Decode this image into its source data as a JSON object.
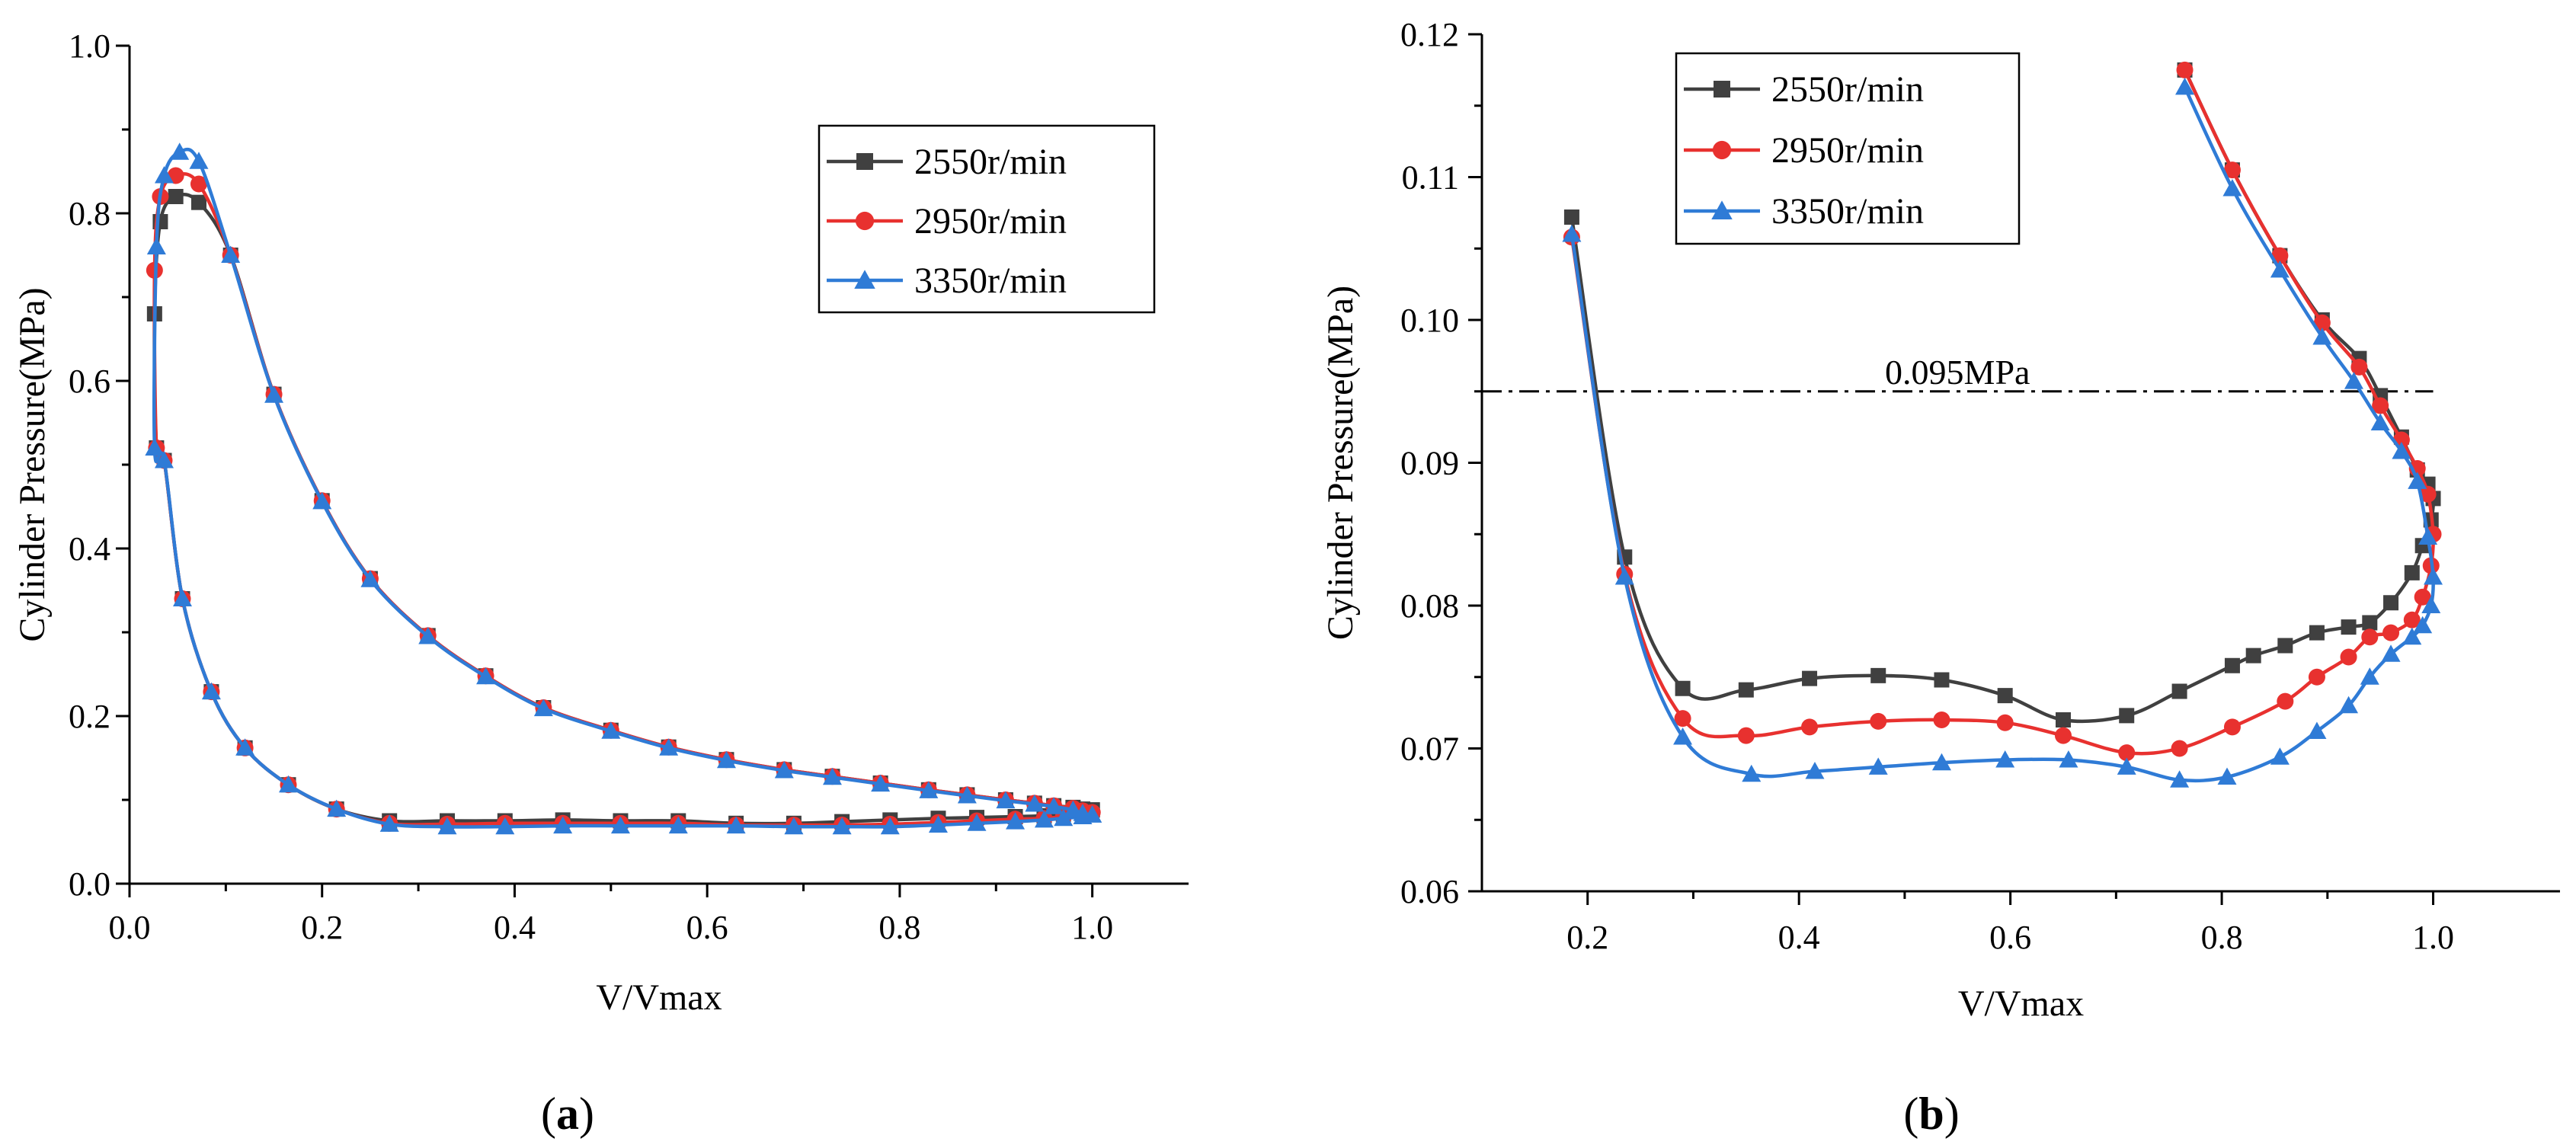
{
  "chart_data": [
    {
      "panel": "a",
      "type": "line",
      "xlabel": "V/Vmax",
      "ylabel": "Cylinder Pressure(MPa)",
      "xlim": [
        0.0,
        1.1
      ],
      "ylim": [
        0.0,
        1.0
      ],
      "xticks": [
        "0.0",
        "0.2",
        "0.4",
        "0.6",
        "0.8",
        "1.0"
      ],
      "yticks": [
        "0.0",
        "0.2",
        "0.4",
        "0.6",
        "0.8",
        "1.0"
      ],
      "legend_position": "top-right",
      "series": [
        {
          "name": "2550r/min",
          "color": "#404040",
          "marker": "square",
          "x": [
            1.0,
            0.99,
            0.98,
            0.96,
            0.94,
            0.91,
            0.87,
            0.83,
            0.78,
            0.73,
            0.68,
            0.62,
            0.56,
            0.5,
            0.43,
            0.37,
            0.31,
            0.25,
            0.2,
            0.15,
            0.105,
            0.072,
            0.048,
            0.032,
            0.026,
            0.028,
            0.036,
            0.055,
            0.085,
            0.12,
            0.165,
            0.215,
            0.27,
            0.33,
            0.39,
            0.45,
            0.51,
            0.57,
            0.63,
            0.69,
            0.74,
            0.79,
            0.84,
            0.88,
            0.92,
            0.95,
            0.97,
            0.99,
            1.0
          ],
          "y": [
            0.088,
            0.089,
            0.091,
            0.093,
            0.096,
            0.1,
            0.106,
            0.112,
            0.12,
            0.128,
            0.136,
            0.148,
            0.163,
            0.183,
            0.21,
            0.248,
            0.296,
            0.364,
            0.457,
            0.584,
            0.75,
            0.813,
            0.82,
            0.79,
            0.68,
            0.52,
            0.505,
            0.34,
            0.229,
            0.162,
            0.118,
            0.089,
            0.075,
            0.075,
            0.075,
            0.076,
            0.075,
            0.075,
            0.072,
            0.072,
            0.074,
            0.076,
            0.078,
            0.079,
            0.08,
            0.081,
            0.083,
            0.085,
            0.088
          ]
        },
        {
          "name": "2950r/min",
          "color": "#e8312f",
          "marker": "circle",
          "x": [
            1.0,
            0.99,
            0.98,
            0.96,
            0.94,
            0.91,
            0.87,
            0.83,
            0.78,
            0.73,
            0.68,
            0.62,
            0.56,
            0.5,
            0.43,
            0.37,
            0.31,
            0.25,
            0.2,
            0.15,
            0.105,
            0.072,
            0.048,
            0.032,
            0.026,
            0.028,
            0.036,
            0.055,
            0.085,
            0.12,
            0.165,
            0.215,
            0.27,
            0.33,
            0.39,
            0.45,
            0.51,
            0.57,
            0.63,
            0.69,
            0.74,
            0.79,
            0.84,
            0.88,
            0.92,
            0.95,
            0.97,
            0.99,
            1.0
          ],
          "y": [
            0.085,
            0.087,
            0.09,
            0.093,
            0.096,
            0.1,
            0.106,
            0.112,
            0.12,
            0.128,
            0.136,
            0.148,
            0.163,
            0.183,
            0.21,
            0.248,
            0.296,
            0.364,
            0.457,
            0.584,
            0.75,
            0.835,
            0.845,
            0.82,
            0.732,
            0.52,
            0.505,
            0.34,
            0.229,
            0.162,
            0.118,
            0.089,
            0.072,
            0.071,
            0.072,
            0.072,
            0.072,
            0.072,
            0.07,
            0.07,
            0.07,
            0.071,
            0.073,
            0.075,
            0.077,
            0.078,
            0.08,
            0.083,
            0.085
          ]
        },
        {
          "name": "3350r/min",
          "color": "#2f7bd6",
          "marker": "triangle",
          "x": [
            1.0,
            0.99,
            0.98,
            0.96,
            0.94,
            0.91,
            0.87,
            0.83,
            0.78,
            0.73,
            0.68,
            0.62,
            0.56,
            0.5,
            0.43,
            0.37,
            0.31,
            0.25,
            0.2,
            0.15,
            0.105,
            0.072,
            0.052,
            0.036,
            0.028,
            0.026,
            0.036,
            0.055,
            0.085,
            0.12,
            0.165,
            0.215,
            0.27,
            0.33,
            0.39,
            0.45,
            0.51,
            0.57,
            0.63,
            0.69,
            0.74,
            0.79,
            0.84,
            0.88,
            0.92,
            0.95,
            0.97,
            0.99,
            1.0
          ],
          "y": [
            0.082,
            0.084,
            0.088,
            0.092,
            0.095,
            0.099,
            0.105,
            0.111,
            0.119,
            0.127,
            0.135,
            0.147,
            0.162,
            0.182,
            0.209,
            0.247,
            0.295,
            0.363,
            0.456,
            0.583,
            0.75,
            0.862,
            0.873,
            0.845,
            0.76,
            0.52,
            0.505,
            0.34,
            0.229,
            0.162,
            0.118,
            0.089,
            0.071,
            0.068,
            0.068,
            0.069,
            0.069,
            0.069,
            0.069,
            0.068,
            0.068,
            0.068,
            0.07,
            0.072,
            0.074,
            0.076,
            0.078,
            0.08,
            0.082
          ]
        }
      ]
    },
    {
      "panel": "b",
      "type": "line",
      "xlabel": "V/Vmax",
      "ylabel": "Cylinder Pressure(MPa)",
      "xlim": [
        0.1,
        1.12
      ],
      "ylim": [
        0.06,
        0.12
      ],
      "xticks": [
        "0.2",
        "0.4",
        "0.6",
        "0.8",
        "1.0"
      ],
      "yticks": [
        "0.06",
        "0.07",
        "0.08",
        "0.09",
        "0.10",
        "0.11",
        "0.12"
      ],
      "legend_position": "top-left",
      "annotation": {
        "text": "0.095MPa",
        "y": 0.095
      },
      "series": [
        {
          "name": "2550r/min",
          "color": "#404040",
          "marker": "square",
          "x": [
            0.765,
            0.81,
            0.855,
            0.895,
            0.93,
            0.95,
            0.97,
            0.985,
            0.995,
            1.0,
            0.998,
            0.99,
            0.98,
            0.96,
            0.94,
            0.92,
            0.89,
            0.86,
            0.83,
            0.81,
            0.76,
            0.71,
            0.65,
            0.595,
            0.535,
            0.475,
            0.41,
            0.35,
            0.29,
            0.235,
            0.185
          ],
          "y": [
            0.1175,
            0.1105,
            0.1045,
            0.1,
            0.0973,
            0.0947,
            0.0918,
            0.0895,
            0.0885,
            0.0875,
            0.086,
            0.0842,
            0.0823,
            0.0802,
            0.0788,
            0.0785,
            0.0781,
            0.0772,
            0.0765,
            0.0758,
            0.074,
            0.0723,
            0.072,
            0.0737,
            0.0748,
            0.0751,
            0.0749,
            0.0741,
            0.0742,
            0.0834,
            0.1072
          ]
        },
        {
          "name": "2950r/min",
          "color": "#e8312f",
          "marker": "circle",
          "x": [
            0.765,
            0.81,
            0.855,
            0.895,
            0.93,
            0.95,
            0.97,
            0.985,
            0.995,
            1.0,
            0.998,
            0.99,
            0.98,
            0.96,
            0.94,
            0.92,
            0.89,
            0.86,
            0.81,
            0.76,
            0.71,
            0.65,
            0.595,
            0.535,
            0.475,
            0.41,
            0.35,
            0.29,
            0.235,
            0.185
          ],
          "y": [
            0.1175,
            0.1105,
            0.1045,
            0.0998,
            0.0967,
            0.094,
            0.0916,
            0.0896,
            0.0878,
            0.085,
            0.0828,
            0.0806,
            0.079,
            0.0781,
            0.0778,
            0.0764,
            0.075,
            0.0733,
            0.0715,
            0.07,
            0.0697,
            0.0709,
            0.0718,
            0.072,
            0.0719,
            0.0715,
            0.0709,
            0.0721,
            0.0822,
            0.1058
          ]
        },
        {
          "name": "3350r/min",
          "color": "#2f7bd6",
          "marker": "triangle",
          "x": [
            0.765,
            0.81,
            0.855,
            0.895,
            0.925,
            0.95,
            0.97,
            0.985,
            0.995,
            1.0,
            0.998,
            0.99,
            0.98,
            0.96,
            0.94,
            0.92,
            0.89,
            0.855,
            0.805,
            0.76,
            0.71,
            0.655,
            0.595,
            0.535,
            0.475,
            0.415,
            0.355,
            0.29,
            0.235,
            0.185
          ],
          "y": [
            0.1163,
            0.1092,
            0.1035,
            0.0988,
            0.0957,
            0.0928,
            0.0908,
            0.0887,
            0.0848,
            0.082,
            0.08,
            0.0786,
            0.0778,
            0.0766,
            0.075,
            0.073,
            0.0712,
            0.0694,
            0.068,
            0.0678,
            0.0687,
            0.0692,
            0.0692,
            0.069,
            0.0687,
            0.0684,
            0.0682,
            0.0708,
            0.082,
            0.106
          ]
        }
      ]
    }
  ],
  "panel_labels": {
    "a": "a",
    "b": "b"
  }
}
